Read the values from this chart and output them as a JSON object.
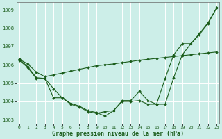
{
  "title": "Graphe pression niveau de la mer (hPa)",
  "background_color": "#cceee8",
  "grid_color": "#aaddcc",
  "line_color": "#1a5c1a",
  "x_values": [
    0,
    1,
    2,
    3,
    4,
    5,
    6,
    7,
    8,
    9,
    10,
    11,
    12,
    13,
    14,
    15,
    16,
    17,
    18,
    19,
    20,
    21,
    22,
    23
  ],
  "series1": [
    1006.3,
    1005.9,
    1005.3,
    1005.25,
    1004.7,
    1004.2,
    1003.9,
    1003.75,
    1003.5,
    1003.4,
    1003.2,
    1003.5,
    1004.05,
    1004.05,
    1004.55,
    1004.05,
    1003.85,
    1003.85,
    1005.3,
    1006.55,
    1007.15,
    1007.7,
    1008.3,
    1009.1
  ],
  "series2": [
    1006.25,
    1005.85,
    1005.25,
    1005.25,
    1004.2,
    1004.2,
    1003.85,
    1003.7,
    1003.45,
    1003.35,
    1003.45,
    1003.5,
    1004.0,
    1004.0,
    1004.05,
    1003.85,
    1003.85,
    1005.25,
    1006.55,
    1007.15,
    1007.15,
    1007.65,
    1008.25,
    1009.1
  ],
  "series3": [
    1006.3,
    1006.05,
    1005.6,
    1005.35,
    1005.45,
    1005.55,
    1005.65,
    1005.75,
    1005.85,
    1005.95,
    1006.0,
    1006.05,
    1006.12,
    1006.18,
    1006.25,
    1006.3,
    1006.35,
    1006.4,
    1006.45,
    1006.5,
    1006.55,
    1006.6,
    1006.65,
    1006.7
  ],
  "ylim": [
    1002.8,
    1009.4
  ],
  "yticks": [
    1003,
    1004,
    1005,
    1006,
    1007,
    1008,
    1009
  ],
  "xlim": [
    -0.3,
    23.3
  ],
  "xticks": [
    0,
    1,
    2,
    3,
    4,
    5,
    6,
    7,
    8,
    9,
    10,
    11,
    12,
    13,
    14,
    15,
    16,
    17,
    18,
    19,
    20,
    21,
    22,
    23
  ]
}
